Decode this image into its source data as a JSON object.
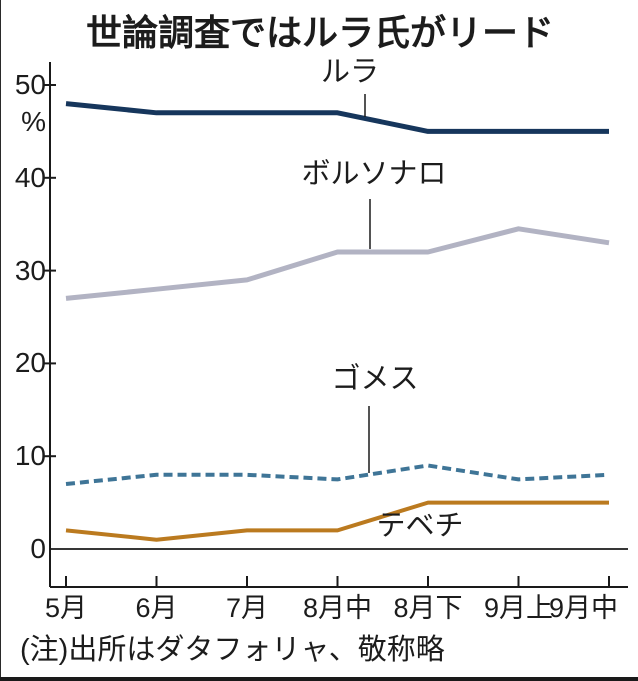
{
  "title": "世論調査ではルラ氏がリード",
  "chart_data": {
    "type": "line",
    "title": "世論調査ではルラ氏がリード",
    "unit_label": "%",
    "xlabel": "",
    "ylabel": "%",
    "categories": [
      "5月",
      "6月",
      "7月",
      "8月中",
      "8月下",
      "9月上",
      "9月中"
    ],
    "yticks": [
      50,
      40,
      30,
      20,
      10,
      0
    ],
    "ylim": [
      0,
      52
    ],
    "grid": false,
    "legend_position": "inline-annotations",
    "series": [
      {
        "id": "lula",
        "name": "ルラ",
        "values": [
          48,
          47,
          47,
          47,
          45,
          45,
          45
        ],
        "color": "#16365c",
        "style": "solid",
        "width": 5
      },
      {
        "id": "bolsonaro",
        "name": "ボルソナロ",
        "values": [
          27,
          28,
          29,
          32,
          32,
          34.5,
          33
        ],
        "color": "#b2b3c3",
        "style": "solid",
        "width": 5
      },
      {
        "id": "gomes",
        "name": "ゴメス",
        "values": [
          7,
          8,
          8,
          7.5,
          9,
          7.5,
          8
        ],
        "color": "#3f7597",
        "style": "dashed",
        "width": 4
      },
      {
        "id": "tebet",
        "name": "テベチ",
        "values": [
          2,
          1,
          2,
          2,
          5,
          5,
          5
        ],
        "color": "#bb7a1f",
        "style": "solid",
        "width": 4
      }
    ],
    "source_note": "(注)出所はダタフォリャ、敬称略"
  }
}
